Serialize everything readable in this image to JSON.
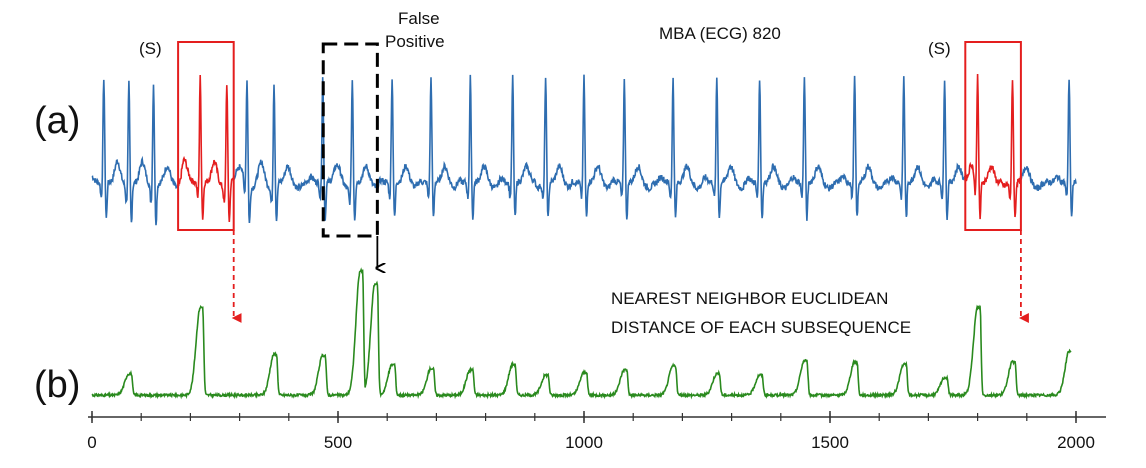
{
  "chart_data": [
    {
      "type": "line",
      "panel_label": "(a)",
      "title": "MBA (ECG) 820",
      "series": [
        {
          "color": "#2e6db0",
          "signal": "ECG",
          "beat_centers": [
            24,
            75,
            125,
            220,
            274,
            315,
            370,
            469,
            529,
            610,
            689,
            769,
            855,
            922,
            1000,
            1082,
            1181,
            1270,
            1357,
            1448,
            1550,
            1650,
            1733,
            1800,
            1871,
            1986
          ],
          "amplitude_range": [
            -0.6,
            1.0
          ]
        }
      ],
      "highlights": [
        {
          "label": "(S)",
          "x_range": [
            175,
            288
          ],
          "color": "#e41e1e",
          "style": "solid",
          "peak_x": 220
        },
        {
          "label": "(S)",
          "x_range": [
            1775,
            1888
          ],
          "color": "#e41e1e",
          "style": "solid",
          "peak_x": 1800
        }
      ],
      "annotations": [
        {
          "text": [
            "False",
            "Positive"
          ],
          "x_range": [
            470,
            580
          ],
          "style": "dashed",
          "color": "#000000"
        }
      ]
    },
    {
      "type": "line",
      "panel_label": "(b)",
      "title": [
        "NEAREST NEIGHBOR  EUCLIDEAN",
        "DISTANCE OF EACH SUBSEQUENCE"
      ],
      "series": [
        {
          "color": "#2a8a1e",
          "signal": "nearest neighbor distance",
          "peaks": [
            {
              "x": 75,
              "y": 0.21
            },
            {
              "x": 220,
              "y": 0.72
            },
            {
              "x": 370,
              "y": 0.36
            },
            {
              "x": 469,
              "y": 0.35
            },
            {
              "x": 545,
              "y": 1.0
            },
            {
              "x": 575,
              "y": 0.9
            },
            {
              "x": 610,
              "y": 0.28
            },
            {
              "x": 689,
              "y": 0.25
            },
            {
              "x": 769,
              "y": 0.24
            },
            {
              "x": 855,
              "y": 0.28
            },
            {
              "x": 922,
              "y": 0.2
            },
            {
              "x": 1000,
              "y": 0.22
            },
            {
              "x": 1082,
              "y": 0.24
            },
            {
              "x": 1181,
              "y": 0.27
            },
            {
              "x": 1270,
              "y": 0.21
            },
            {
              "x": 1357,
              "y": 0.2
            },
            {
              "x": 1448,
              "y": 0.31
            },
            {
              "x": 1550,
              "y": 0.3
            },
            {
              "x": 1650,
              "y": 0.28
            },
            {
              "x": 1733,
              "y": 0.18
            },
            {
              "x": 1800,
              "y": 0.72
            },
            {
              "x": 1871,
              "y": 0.3
            },
            {
              "x": 1986,
              "y": 0.38
            }
          ]
        }
      ],
      "arrows": [
        {
          "from_x": 288,
          "to_x": 288,
          "color": "#e41e1e",
          "style": "dashed"
        },
        {
          "from_x": 580,
          "to_x": 580,
          "color": "#000000",
          "style": "solid"
        },
        {
          "from_x": 1888,
          "to_x": 1888,
          "color": "#e41e1e",
          "style": "dashed"
        }
      ],
      "x_axis": {
        "range": [
          0,
          2000
        ],
        "ticks": [
          0,
          500,
          1000,
          1500,
          2000
        ],
        "tick_labels": [
          "0",
          "500",
          "1000",
          "1500",
          "2000"
        ],
        "minor_step": 100
      }
    }
  ]
}
